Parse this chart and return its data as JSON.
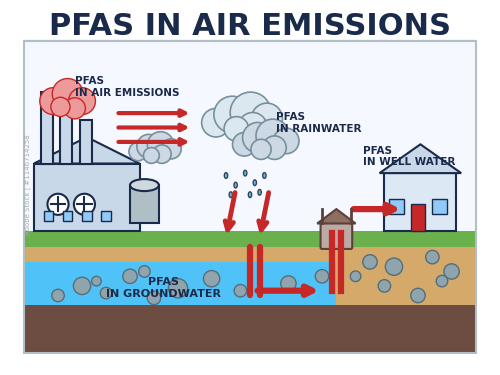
{
  "title": "PFAS IN AIR EMISSIONS",
  "title_fontsize": 22,
  "title_color": "#1a2a4a",
  "title_weight": "bold",
  "bg_color": "#ffffff",
  "label_air": "PFAS\nIN AIR EMISSIONS",
  "label_rain": "PFAS\nIN RAINWATER",
  "label_well": "PFAS\nIN WELL WATER",
  "label_ground": "PFAS\nIN GROUNDWATER",
  "ground_top_color": "#6ab04c",
  "ground_sand_color": "#d4a96a",
  "water_color": "#4fc3f7",
  "deep_ground_color": "#6d4c41",
  "factory_body_color": "#c8d8e8",
  "factory_outline": "#1a2a4a",
  "chimney_color": "#c8d8e8",
  "arrow_color": "#c62828",
  "arrow_lw": 3,
  "cloud_color": "#dce8f0",
  "cloud_outline": "#78909c",
  "house_color": "#dce8f4",
  "pipe_color": "#c62828",
  "rock_color_edge": "#546e7a",
  "rock_color_face": "#90a4ae",
  "sky_color": "#f5f9ff",
  "smoke_color": "#ef9a9a",
  "smoke_outline": "#c62828",
  "label_fontsize": 7.5,
  "label_ground_fontsize": 8
}
